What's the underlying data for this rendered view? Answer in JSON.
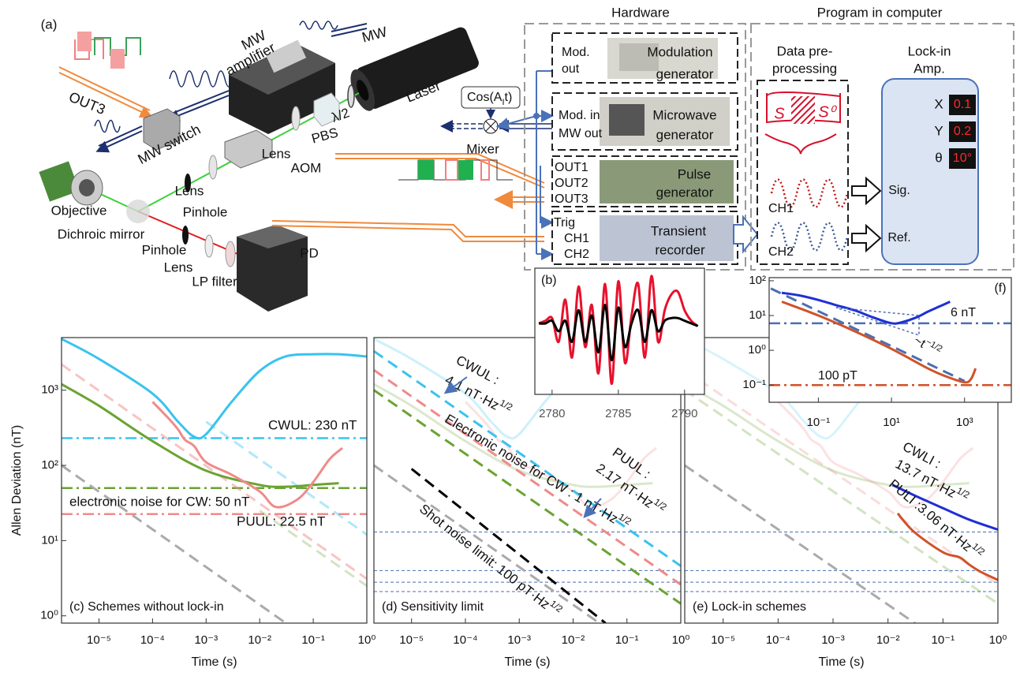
{
  "diagram": {
    "panel_label": "(a)",
    "labels": {
      "out3": "OUT3",
      "mw_amp_1": "MW",
      "mw_amp_2": "amplifier",
      "mw": "MW",
      "mw_switch": "MW switch",
      "half_wave": "λ/2",
      "laser": "Laser",
      "pbs": "PBS",
      "lens_1": "Lens",
      "aom": "AOM",
      "lens_2": "Lens",
      "objective": "Objective",
      "pinhole_1": "Pinhole",
      "dichroic": "Dichroic mirror",
      "pinhole_2": "Pinhole",
      "lens_3": "Lens",
      "lp_filter": "LP filter",
      "pd": "PD",
      "mixer": "Mixer"
    },
    "cos": {
      "pre": "Cos(A",
      "sub": "I",
      "post": "t)"
    }
  },
  "hardware": {
    "title": "Hardware",
    "mod_out": [
      "Mod.",
      "out"
    ],
    "mod_gen": [
      "Modulation",
      "generator"
    ],
    "mod_in": "Mod. in",
    "mw_out": "MW out",
    "mw_gen": [
      "Microwave",
      "generator"
    ],
    "outs": [
      "OUT1",
      "OUT2",
      "OUT3"
    ],
    "pulse_gen": [
      "Pulse",
      "generator"
    ],
    "trig": "Trig",
    "ch1": "CH1",
    "ch2": "CH2",
    "recorder": [
      "Transient",
      "recorder"
    ]
  },
  "program": {
    "title": "Program in computer",
    "pre": [
      "Data pre-",
      "processing"
    ],
    "lockin": [
      "Lock-in",
      "Amp."
    ],
    "readouts": [
      {
        "name": "X",
        "value": "0.1"
      },
      {
        "name": "Y",
        "value": "0.2"
      },
      {
        "name": "θ",
        "value": "10°"
      }
    ],
    "s": "S",
    "s0": "S⁰",
    "ch1": "CH1",
    "ch2": "CH2",
    "sig": "Sig.",
    "ref": "Ref."
  },
  "chart_data": [
    {
      "type": "line",
      "label": "(c) Schemes without lock-in",
      "xlabel": "Time (s)",
      "ylabel": "Allen Deviation (nT)",
      "xscale": "log",
      "yscale": "log",
      "xlim": [
        2e-06,
        1
      ],
      "ylim": [
        0.8,
        5000
      ],
      "xticks": [
        {
          "value": 1e-05,
          "label": "10⁻⁵"
        },
        {
          "value": 0.0001,
          "label": "10⁻⁴"
        },
        {
          "value": 0.001,
          "label": "10⁻³"
        },
        {
          "value": 0.01,
          "label": "10⁻²"
        },
        {
          "value": 0.1,
          "label": "10⁻¹"
        },
        {
          "value": 1,
          "label": "10⁰"
        }
      ],
      "yticks": [
        {
          "value": 1,
          "label": "10⁰"
        },
        {
          "value": 10,
          "label": "10¹"
        },
        {
          "value": 100,
          "label": "10²"
        },
        {
          "value": 1000,
          "label": "10³"
        }
      ],
      "series": [
        {
          "color": "#f08a8a",
          "style": "dashed",
          "alpha": 0.5,
          "x": [
            2e-06,
            1
          ],
          "values": [
            2200,
            3.1
          ]
        },
        {
          "color": "#39c3ef",
          "style": "dashed",
          "alpha": 0.4,
          "x": [
            0.001,
            1
          ],
          "values": [
            380,
            12
          ]
        },
        {
          "color": "#6aa332",
          "style": "dashed",
          "alpha": 0.3,
          "x": [
            0.01,
            1
          ],
          "values": [
            25,
            2.5
          ]
        },
        {
          "color": "#aaaaaa",
          "style": "dashed",
          "alpha": 1,
          "x": [
            2e-06,
            1
          ],
          "values": [
            100,
            0.14
          ]
        },
        {
          "color": "#39c3ef",
          "style": "solid",
          "alpha": 1,
          "x": [
            2e-06,
            1e-05,
            0.0001,
            0.0003,
            0.0006,
            0.001,
            0.003,
            0.01,
            0.03,
            0.1,
            0.3,
            1
          ],
          "values": [
            4800,
            2600,
            900,
            380,
            240,
            260,
            700,
            1800,
            2800,
            3000,
            3000,
            2800
          ]
        },
        {
          "color": "#6aa332",
          "style": "solid",
          "alpha": 1,
          "x": [
            2e-06,
            1e-05,
            0.0001,
            0.001,
            0.01,
            0.03,
            0.1,
            0.3
          ],
          "values": [
            1200,
            620,
            210,
            85,
            55,
            52,
            55,
            58
          ]
        },
        {
          "color": "#f08a8a",
          "style": "solid",
          "alpha": 1,
          "x": [
            0.0001,
            0.0002,
            0.0003,
            0.0004,
            0.0006,
            0.001,
            0.003,
            0.01,
            0.02,
            0.05,
            0.1,
            0.2,
            0.35
          ],
          "values": [
            700,
            420,
            300,
            220,
            180,
            110,
            75,
            45,
            28,
            35,
            60,
            120,
            170
          ]
        }
      ],
      "hlines": [
        {
          "value": 230,
          "color": "#39c3ef",
          "style": "dashdot"
        },
        {
          "value": 50,
          "color": "#6aa332",
          "style": "dashdot"
        },
        {
          "value": 22.5,
          "color": "#f08a8a",
          "style": "dashdot"
        }
      ],
      "annotations": [
        "CWUL: 230 nT",
        "electronic noise for CW: 50 nT",
        "PUUL: 22.5 nT"
      ]
    },
    {
      "type": "line",
      "label": "(d) Sensitivity limit",
      "xlabel": "Time (s)",
      "xscale": "log",
      "yscale": "log",
      "xlim": [
        2e-06,
        1
      ],
      "ylim": [
        0.8,
        5000
      ],
      "xticks": [
        {
          "value": 1e-05,
          "label": "10⁻⁵"
        },
        {
          "value": 0.0001,
          "label": "10⁻⁴"
        },
        {
          "value": 0.001,
          "label": "10⁻³"
        },
        {
          "value": 0.01,
          "label": "10⁻²"
        },
        {
          "value": 0.1,
          "label": "10⁻¹"
        },
        {
          "value": 1,
          "label": "10⁰"
        }
      ],
      "series": [
        {
          "color": "#39c3ef",
          "style": "solid",
          "alpha": 0.25,
          "x": [
            2e-06,
            1e-05,
            0.0001,
            0.0003,
            0.0006,
            0.001,
            0.003,
            0.01,
            0.03,
            0.1,
            0.3,
            1
          ],
          "values": [
            4800,
            2600,
            900,
            380,
            240,
            260,
            700,
            1800,
            2800,
            3000,
            3000,
            2800
          ]
        },
        {
          "color": "#6aa332",
          "style": "solid",
          "alpha": 0.25,
          "x": [
            2e-06,
            1e-05,
            0.0001,
            0.001,
            0.01,
            0.03,
            0.1,
            0.3
          ],
          "values": [
            1200,
            620,
            210,
            85,
            55,
            52,
            55,
            58
          ]
        },
        {
          "color": "#f08a8a",
          "style": "solid",
          "alpha": 0.25,
          "x": [
            0.0001,
            0.0002,
            0.0003,
            0.0004,
            0.0006,
            0.001,
            0.003,
            0.01,
            0.02,
            0.05,
            0.1,
            0.2,
            0.35
          ],
          "values": [
            700,
            420,
            300,
            220,
            180,
            110,
            75,
            45,
            28,
            35,
            60,
            120,
            170
          ]
        },
        {
          "color": "#aaaaaa",
          "style": "dashed",
          "alpha": 1,
          "x": [
            2e-06,
            1
          ],
          "values": [
            100,
            0.14
          ]
        },
        {
          "color": "#39c3ef",
          "style": "dashed",
          "alpha": 1,
          "x": [
            2e-06,
            1
          ],
          "values": [
            3300,
            4.6
          ]
        },
        {
          "color": "#f08a8a",
          "style": "dashed",
          "alpha": 1,
          "x": [
            2e-06,
            1
          ],
          "values": [
            1850,
            2.6
          ]
        },
        {
          "color": "#6aa332",
          "style": "dashed",
          "alpha": 1,
          "x": [
            2e-06,
            1
          ],
          "values": [
            1000,
            1.45
          ]
        },
        {
          "color": "#000000",
          "style": "dashed",
          "alpha": 1,
          "x": [
            1e-05,
            0.04
          ],
          "values": [
            90,
            0.8
          ]
        }
      ],
      "hlines": [
        {
          "value": 13,
          "color": "#4a6fb0",
          "style": "dotted"
        },
        {
          "value": 4,
          "color": "#4a6fb0",
          "style": "dotted"
        },
        {
          "value": 2.8,
          "color": "#4a6fb0",
          "style": "dotted"
        },
        {
          "value": 2.1,
          "color": "#4a6fb0",
          "style": "dotted"
        }
      ],
      "annotations": [
        "CWUL :",
        {
          "text": "4.1 nT·Hz",
          "sup": "1/2"
        },
        {
          "text": "Electronic noise for CW : 1 nT·Hz",
          "sup": "1/2"
        },
        {
          "text": "Shot noise limit: 100 pT·Hz",
          "sup": "1/2"
        },
        "PUUL :",
        {
          "text": "2.17 nT·Hz",
          "sup": "1/2"
        }
      ]
    },
    {
      "type": "line",
      "label": "(e) Lock-in schemes",
      "xlabel": "Time (s)",
      "xscale": "log",
      "yscale": "log",
      "xlim": [
        2e-06,
        1
      ],
      "ylim": [
        0.8,
        5000
      ],
      "xticks": [
        {
          "value": 1e-05,
          "label": "10⁻⁵"
        },
        {
          "value": 0.0001,
          "label": "10⁻⁴"
        },
        {
          "value": 0.001,
          "label": "10⁻³"
        },
        {
          "value": 0.01,
          "label": "10⁻²"
        },
        {
          "value": 0.1,
          "label": "10⁻¹"
        },
        {
          "value": 1,
          "label": "10⁰"
        }
      ],
      "series": [
        {
          "color": "#39c3ef",
          "style": "solid",
          "alpha": 0.2,
          "x": [
            2e-06,
            1e-05,
            0.0001,
            0.0003,
            0.0006,
            0.001,
            0.003,
            0.01,
            0.03,
            0.1,
            0.3,
            1
          ],
          "values": [
            4800,
            2600,
            900,
            380,
            240,
            260,
            700,
            1800,
            2800,
            3000,
            3000,
            2800
          ]
        },
        {
          "color": "#6aa332",
          "style": "solid",
          "alpha": 0.25,
          "x": [
            2e-06,
            1e-05,
            0.0001,
            0.001,
            0.01,
            0.03,
            0.1,
            0.3
          ],
          "values": [
            1200,
            620,
            210,
            85,
            55,
            52,
            55,
            58
          ]
        },
        {
          "color": "#f08a8a",
          "style": "solid",
          "alpha": 0.25,
          "x": [
            0.0001,
            0.0002,
            0.0003,
            0.0004,
            0.0006,
            0.001,
            0.003,
            0.01,
            0.02,
            0.05,
            0.1,
            0.2,
            0.35
          ],
          "values": [
            700,
            420,
            300,
            220,
            180,
            110,
            75,
            45,
            28,
            35,
            60,
            120,
            170
          ]
        },
        {
          "color": "#f08a8a",
          "style": "dashed",
          "alpha": 0.3,
          "x": [
            2e-06,
            1
          ],
          "values": [
            1850,
            2.6
          ]
        },
        {
          "color": "#6aa332",
          "style": "dashed",
          "alpha": 0.3,
          "x": [
            2e-06,
            1
          ],
          "values": [
            1000,
            1.45
          ]
        },
        {
          "color": "#aaaaaa",
          "style": "dashed",
          "alpha": 1,
          "x": [
            2e-06,
            1
          ],
          "values": [
            100,
            0.14
          ]
        },
        {
          "color": "#1f2fd6",
          "style": "solid",
          "alpha": 1,
          "x": [
            0.012,
            0.03,
            0.1,
            0.3,
            1
          ],
          "values": [
            55,
            40,
            27,
            19,
            14
          ]
        },
        {
          "color": "#d0522a",
          "style": "solid",
          "alpha": 1,
          "x": [
            0.015,
            0.03,
            0.1,
            0.2,
            0.3,
            0.5,
            1
          ],
          "values": [
            23,
            13,
            7,
            6,
            4.8,
            3.8,
            3
          ]
        }
      ],
      "hlines": [
        {
          "value": 13,
          "color": "#4a6fb0",
          "style": "dotted"
        },
        {
          "value": 4,
          "color": "#4a6fb0",
          "style": "dotted"
        },
        {
          "value": 2.8,
          "color": "#4a6fb0",
          "style": "dotted"
        },
        {
          "value": 2.1,
          "color": "#4a6fb0",
          "style": "dotted"
        }
      ],
      "annotations": [
        "CWLI :",
        {
          "text": "13.7 nT·Hz",
          "sup": "1/2"
        },
        {
          "text": "PULI :3.06 nT·Hz",
          "sup": "1/2"
        }
      ]
    },
    {
      "type": "line",
      "label": "(f)",
      "xscale": "log",
      "yscale": "log",
      "xlim": [
        0.0045,
        19000
      ],
      "ylim": [
        0.032,
        123
      ],
      "xticks": [
        {
          "value": 0.1,
          "label": "10⁻¹"
        },
        {
          "value": 10,
          "label": "10¹"
        },
        {
          "value": 1000,
          "label": "10³"
        }
      ],
      "yticks": [
        {
          "value": 0.1,
          "label": "10⁻¹"
        },
        {
          "value": 1,
          "label": "10⁰"
        },
        {
          "value": 10,
          "label": "10¹"
        },
        {
          "value": 100,
          "label": "10²"
        }
      ],
      "series": [
        {
          "color": "#4a6fb0",
          "style": "dashed",
          "alpha": 1,
          "x": [
            0.005,
            1000
          ],
          "values": [
            60,
            0.13
          ]
        },
        {
          "color": "#1f2fd6",
          "style": "solid",
          "alpha": 1,
          "x": [
            0.01,
            0.03,
            0.1,
            0.3,
            1,
            3,
            10,
            20,
            50,
            100,
            200,
            400
          ],
          "values": [
            45,
            38,
            28,
            20,
            14,
            9,
            6,
            6.5,
            9,
            13,
            18,
            25
          ]
        },
        {
          "color": "#d0522a",
          "style": "solid",
          "alpha": 1,
          "x": [
            0.01,
            0.1,
            1,
            10,
            100,
            300,
            1000,
            1500,
            2000
          ],
          "values": [
            25,
            10,
            3.5,
            1.1,
            0.3,
            0.18,
            0.12,
            0.15,
            0.3
          ]
        }
      ],
      "hlines": [
        {
          "value": 6,
          "color": "#4a6fb0",
          "style": "dashdot"
        },
        {
          "value": 0.1,
          "color": "#d0522a",
          "style": "dashdot"
        }
      ],
      "annotations": [
        "6 nT",
        "100 pT",
        {
          "text": "~t",
          "sup": "−1/2"
        }
      ]
    },
    {
      "type": "line",
      "label": "(b)",
      "xscale": "linear",
      "yscale": "linear",
      "xlim": [
        2778.7,
        2791.5
      ],
      "ylim": [
        -1.2,
        1.2
      ],
      "xticks": [
        2780,
        2785,
        2790
      ],
      "series": [
        {
          "color": "#e8112d",
          "style": "solid",
          "alpha": 1,
          "x": [
            2779,
            2779.5,
            2780,
            2780.5,
            2781,
            2781.5,
            2782,
            2782.5,
            2783,
            2783.5,
            2784,
            2784.5,
            2785,
            2785.5,
            2786,
            2786.5,
            2787,
            2787.5,
            2788,
            2788.5,
            2789,
            2789.5,
            2790,
            2790.5,
            2791
          ],
          "values": [
            0.15,
            0.2,
            0.25,
            -0.2,
            0.6,
            -0.5,
            0.85,
            -0.3,
            0.5,
            -0.8,
            0.9,
            -1.0,
            0.95,
            -0.6,
            0.3,
            0.9,
            -0.5,
            1.05,
            -0.2,
            0.4,
            0.7,
            0.75,
            0.4,
            0.2,
            0.1
          ]
        },
        {
          "color": "#000000",
          "style": "solid",
          "alpha": 1,
          "x": [
            2779,
            2779.5,
            2780,
            2780.5,
            2781,
            2781.5,
            2782,
            2782.5,
            2783,
            2783.5,
            2784,
            2784.5,
            2785,
            2785.5,
            2786,
            2786.5,
            2787,
            2787.5,
            2788,
            2788.5,
            2789,
            2789.5,
            2790,
            2790.5,
            2791
          ],
          "values": [
            0.15,
            0.15,
            0.2,
            0.0,
            0.2,
            -0.2,
            0.4,
            -0.2,
            0.3,
            -0.4,
            0.5,
            -0.55,
            0.45,
            -0.3,
            0.15,
            0.4,
            -0.2,
            0.4,
            0.0,
            0.2,
            0.25,
            0.25,
            0.2,
            0.15,
            0.1
          ]
        }
      ]
    }
  ]
}
